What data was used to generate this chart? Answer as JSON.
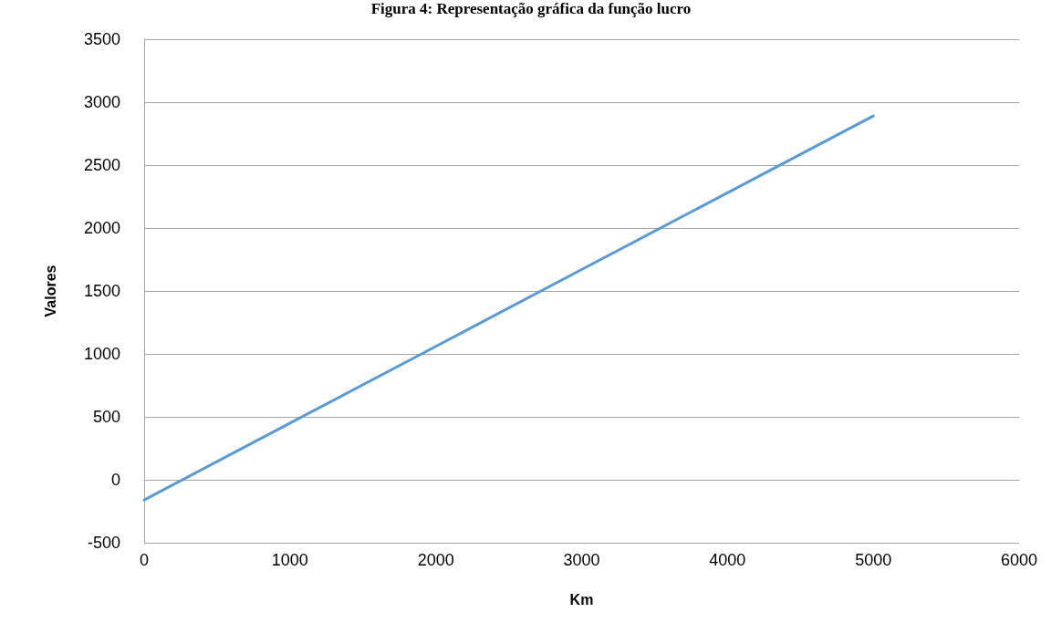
{
  "chart_data": {
    "type": "line",
    "title": "Figura 4: Representação gráfica da função lucro",
    "xlabel": "Km",
    "ylabel": "Valores",
    "x": [
      0,
      1000,
      2000,
      3000,
      4000,
      5000
    ],
    "series": [
      {
        "color": "#5b9bd5",
        "values": [
          -160,
          450,
          1060,
          1670,
          2280,
          2890
        ]
      }
    ],
    "xlim": [
      0,
      6000
    ],
    "xticks": [
      0,
      1000,
      2000,
      3000,
      4000,
      5000,
      6000
    ],
    "ylim": [
      -500,
      3500
    ],
    "yticks": [
      -500,
      0,
      500,
      1000,
      1500,
      2000,
      2500,
      3000,
      3500
    ],
    "grid": "y",
    "marker": "none",
    "line_style": "solid"
  }
}
